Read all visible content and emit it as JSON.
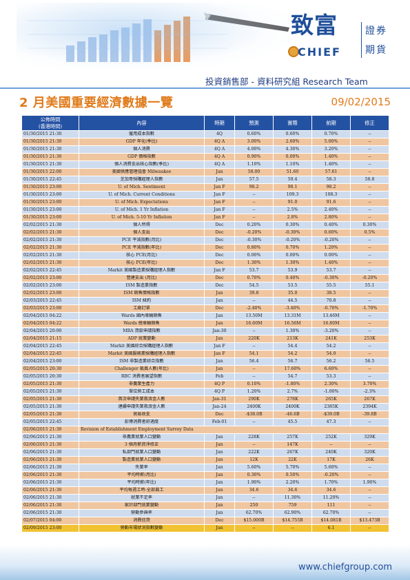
{
  "logo": {
    "name_zh": "致富",
    "brand": "CHIEF",
    "sub1": "證券",
    "sub2": "期貨"
  },
  "dept_line": "投資銷售部 - 資料研究組 Research Team",
  "title": "2 月美國重要經濟數據一覽",
  "date": "09/02/2015",
  "columns": {
    "time": "公佈時間",
    "time_sub": "(香港時間)",
    "content": "內容",
    "period": "時期",
    "forecast": "預測",
    "actual": "實際",
    "previous": "前期",
    "revised": "修正"
  },
  "rows": [
    [
      "01/30/2015 21:30",
      "僱用成本指數",
      "4Q",
      "0.60%",
      "0.60%",
      "0.70%",
      "--"
    ],
    [
      "01/30/2015 21:30",
      "GDP 年化(季比)",
      "4Q A",
      "3.00%",
      "2.60%",
      "5.00%",
      "--"
    ],
    [
      "01/30/2015 21:30",
      "個人消費",
      "4Q A",
      "4.00%",
      "4.30%",
      "3.20%",
      "--"
    ],
    [
      "01/30/2015 21:30",
      "GDP 價格指數",
      "4Q A",
      "0.90%",
      "0.00%",
      "1.40%",
      "--"
    ],
    [
      "01/30/2015 21:30",
      "個人消費支出核心指數(季比)",
      "4Q A",
      "1.10%",
      "1.10%",
      "1.40%",
      "--"
    ],
    [
      "01/30/2015 22:00",
      "美國供應管理協會 Milwaukee",
      "Jan",
      "58.00",
      "51.60",
      "57.61",
      "--"
    ],
    [
      "01/30/2015 22:45",
      "芝加哥採購經理人指數",
      "Jan",
      "57.5",
      "59.4",
      "58.3",
      "58.8"
    ],
    [
      "01/30/2015 23:00",
      "U. of Mich. Sentiment",
      "Jan F",
      "98.2",
      "98.1",
      "98.2",
      "--"
    ],
    [
      "01/30/2015 23:00",
      "U. of Mich. Current Conditions",
      "Jan F",
      "--",
      "109.3",
      "108.3",
      "--"
    ],
    [
      "01/30/2015 23:00",
      "U. of Mich. Expectations",
      "Jan F",
      "--",
      "91.0",
      "91.6",
      "--"
    ],
    [
      "01/30/2015 23:00",
      "U. of Mich. 1 Yr Inflation",
      "Jan F",
      "--",
      "2.5%",
      "2.40%",
      "--"
    ],
    [
      "01/30/2015 23:00",
      "U. of Mich. 5-10 Yr Inflation",
      "Jan F",
      "--",
      "2.8%",
      "2.80%",
      "--"
    ],
    [
      "02/02/2015 21:30",
      "個人所得",
      "Dec",
      "0.20%",
      "0.30%",
      "0.40%",
      "0.30%"
    ],
    [
      "02/02/2015 21:30",
      "個人支出",
      "Dec",
      "-0.20%",
      "-0.30%",
      "0.60%",
      "0.5%"
    ],
    [
      "02/02/2015 21:30",
      "PCE 平減指數(月比)",
      "Dec",
      "-0.30%",
      "-0.20%",
      "-0.20%",
      "--"
    ],
    [
      "02/02/2015 21:30",
      "PCE 平減指數(年比)",
      "Dec",
      "0.80%",
      "0.70%",
      "1.20%",
      "--"
    ],
    [
      "02/02/2015 21:30",
      "核心 PCE(月比)",
      "Dec",
      "0.00%",
      "0.00%",
      "0.00%",
      "--"
    ],
    [
      "02/02/2015 21:30",
      "核心 PCE(年比)",
      "Dec",
      "1.30%",
      "1.30%",
      "1.40%",
      "--"
    ],
    [
      "02/02/2015 22:45",
      "Markit 美國製造業採購經理人指數",
      "Jan F",
      "53.7",
      "53.9",
      "53.7",
      "--"
    ],
    [
      "02/02/2015 23:00",
      "營建支出 (月比)",
      "Dec",
      "0.70%",
      "0.40%",
      "-0.30%",
      "-0.20%"
    ],
    [
      "02/02/2015 23:00",
      "ISM 製造業指數",
      "Dec",
      "54.5",
      "53.5",
      "55.5",
      "55.1"
    ],
    [
      "02/02/2015 23:00",
      "ISM 銷售價格指數",
      "Jan",
      "39.8",
      "35.0",
      "38.5",
      "--"
    ],
    [
      "02/03/2015 22:45",
      "ISM 紐約",
      "Jan",
      "--",
      "44.5",
      "70.8",
      "--"
    ],
    [
      "02/03/2015 23:00",
      "工廠訂單",
      "Dec",
      "-2.40%",
      "-3.40%",
      "-0.70%",
      "-1.70%"
    ],
    [
      "02/04/2015 04:22",
      "Wards 國內車輛銷售",
      "Jan",
      "13.50M",
      "13.31M",
      "13.46M",
      "--"
    ],
    [
      "02/04/2015 04:22",
      "Wards 總車輛銷售",
      "Jan",
      "16.60M",
      "16.56M",
      "16.80M",
      "--"
    ],
    [
      "02/04/2015 20:00",
      "MBA 貸款申請指數",
      "Jan-30",
      "--",
      "1.30%",
      "-3.20%",
      "--"
    ],
    [
      "02/04/2015 21:15",
      "ADP 就業變動",
      "Jan",
      "220K",
      "213K",
      "241K",
      "253K"
    ],
    [
      "02/04/2015 22:45",
      "Markit 美國綜合採購經理人指數",
      "Jan F",
      "--",
      "54.4",
      "54.2",
      "--"
    ],
    [
      "02/04/2015 22:45",
      "Markit 美國服務業採購經理人指數",
      "Jan F",
      "54.1",
      "54.2",
      "54.0",
      "--"
    ],
    [
      "02/04/2015 23:00",
      "ISM 非製造業綜合指數",
      "Jan",
      "56.4",
      "56.7",
      "56.2",
      "56.5"
    ],
    [
      "02/05/2015 20:30",
      "Challenger 裁員人數(年比)",
      "Jan",
      "--",
      "17.60%",
      "6.60%",
      "--"
    ],
    [
      "02/05/2015 20:30",
      "RBC 消費者展望指數",
      "Feb",
      "--",
      "54.7",
      "53.3",
      "--"
    ],
    [
      "02/05/2015 21:30",
      "非農業生產力",
      "4Q P",
      "0.10%",
      "-1.80%",
      "2.30%",
      "3.70%"
    ],
    [
      "02/05/2015 21:30",
      "單位勞工成本",
      "4Q P",
      "1.20%",
      "2.7%",
      "-1.00%",
      "-2.3%"
    ],
    [
      "02/05/2015 21:30",
      "首次申請失業救濟金人數",
      "Jan-31",
      "290K",
      "278K",
      "265K",
      "267K"
    ],
    [
      "02/05/2015 21:30",
      "連續申請失業救濟金人數",
      "Jan-24",
      "2400K",
      "2400K",
      "2385K",
      "2394K"
    ],
    [
      "02/05/2015 21:30",
      "貿易收支",
      "Dec",
      "-$38.0B",
      "-46.6B",
      "-$39.0B",
      "-39.8B"
    ],
    [
      "02/05/2015 22:45",
      "彭博消費者舒適度",
      "Feb-01",
      "--",
      "45.5",
      "47.3",
      "--"
    ],
    [
      "02/06/2015 21:30",
      "Revision of Establishment Employment Survey Data",
      "",
      "",
      "",
      "",
      ""
    ],
    [
      "02/06/2015 21:30",
      "非農業就業人口變動",
      "Jan",
      "228K",
      "257K",
      "252K",
      "329K"
    ],
    [
      "02/06/2015 21:30",
      "3 個月薪資淨修正",
      "Jan",
      "--",
      "147K",
      "--",
      "--"
    ],
    [
      "02/06/2015 21:30",
      "私部門就業人口變動",
      "Jan",
      "222K",
      "267K",
      "240K",
      "320K"
    ],
    [
      "02/06/2015 21:30",
      "製造業就業人口變動",
      "Jan",
      "12K",
      "22K",
      "17K",
      "26K"
    ],
    [
      "02/06/2015 21:30",
      "失業率",
      "Jan",
      "5.60%",
      "5.70%",
      "5.60%",
      "--"
    ],
    [
      "02/06/2015 21:30",
      "平均時薪(月比)",
      "Jan",
      "0.30%",
      "0.50%",
      "-0.20%",
      "--"
    ],
    [
      "02/06/2015 21:30",
      "平均時薪(年比)",
      "Jan",
      "1.90%",
      "2.20%",
      "1.70%",
      "1.90%"
    ],
    [
      "02/06/2015 21:30",
      "平均每週工時-全部員工",
      "Jan",
      "34.6",
      "34.6",
      "34.6",
      "--"
    ],
    [
      "02/06/2015 21:30",
      "就業不足率",
      "Jan",
      "--",
      "11.30%",
      "11.20%",
      "--"
    ],
    [
      "02/06/2015 21:30",
      "家計部門就業變動",
      "Jan",
      "250",
      "759",
      "111",
      "--"
    ],
    [
      "02/06/2015 21:30",
      "勞動參與率",
      "Jan",
      "62.70%",
      "62.90%",
      "62.70%",
      "--"
    ],
    [
      "02/07/2015 04:00",
      "消費信貸",
      "Dec",
      "$15.000B",
      "$14.755B",
      "$14.081B",
      "$13.473B"
    ],
    [
      "02/09/2015 23:00",
      "勞動市場狀況指數變動",
      "Jan",
      "--",
      "--",
      "6.1",
      "--"
    ]
  ],
  "footer_url": "www.chiefgroup.com"
}
